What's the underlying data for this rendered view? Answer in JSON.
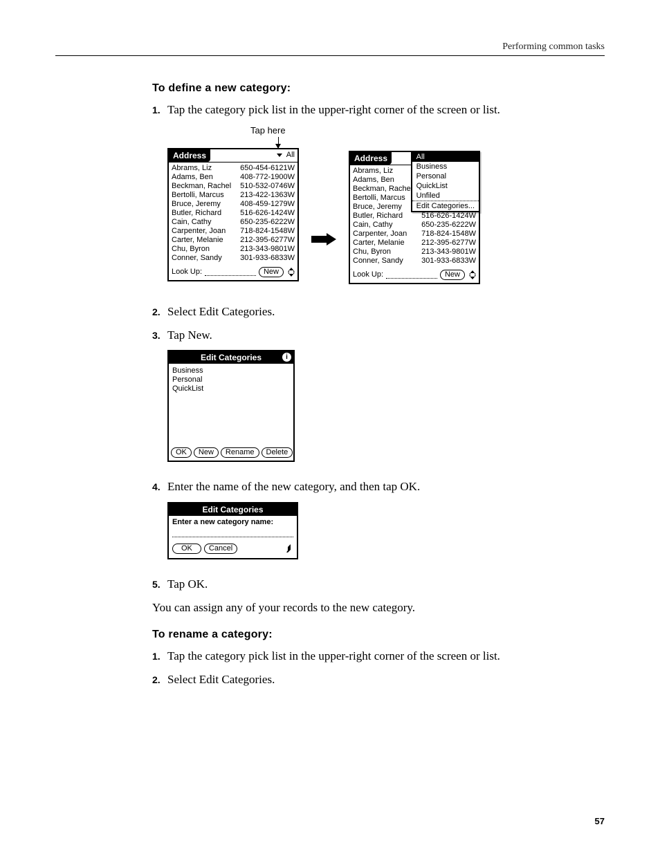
{
  "header": {
    "right_text": "Performing common tasks"
  },
  "section1": {
    "heading": "To define a new category:",
    "steps": {
      "s1": "Tap the category pick list in the upper-right corner of the screen or list.",
      "s2": "Select Edit Categories.",
      "s3": "Tap New.",
      "s4": "Enter the name of the new category, and then tap OK.",
      "s5": "Tap OK."
    },
    "followup": "You can assign any of your records to the new category."
  },
  "section2": {
    "heading": "To rename a category:",
    "steps": {
      "s1": "Tap the category pick list in the upper-right corner of the screen or list.",
      "s2": "Select Edit Categories."
    }
  },
  "figure": {
    "tap_here": "Tap here",
    "app_title": "Address",
    "picklist_all": "All",
    "lookup_label": "Look Up:",
    "new_btn": "New",
    "contacts": [
      {
        "name": "Abrams, Liz",
        "phone": "650-454-6121W"
      },
      {
        "name": "Adams, Ben",
        "phone": "408-772-1900W"
      },
      {
        "name": "Beckman, Rachel",
        "phone": "510-532-0746W"
      },
      {
        "name": "Bertolli, Marcus",
        "phone": "213-422-1363W"
      },
      {
        "name": "Bruce, Jeremy",
        "phone": "408-459-1279W"
      },
      {
        "name": "Butler, Richard",
        "phone": "516-626-1424W"
      },
      {
        "name": "Cain, Cathy",
        "phone": "650-235-6222W"
      },
      {
        "name": "Carpenter, Joan",
        "phone": "718-824-1548W"
      },
      {
        "name": "Carter, Melanie",
        "phone": "212-395-6277W"
      },
      {
        "name": "Chu, Byron",
        "phone": "213-343-9801W"
      },
      {
        "name": "Conner, Sandy",
        "phone": "301-933-6833W"
      }
    ],
    "dropdown": {
      "selected": "All",
      "items": [
        "Business",
        "Personal",
        "QuickList",
        "Unfiled"
      ],
      "edit_item": "Edit Categories..."
    }
  },
  "edit_categories_dialog": {
    "title": "Edit Categories",
    "items": [
      "Business",
      "Personal",
      "QuickList"
    ],
    "buttons": {
      "ok": "OK",
      "new": "New",
      "rename": "Rename",
      "delete": "Delete"
    }
  },
  "name_dialog": {
    "title": "Edit Categories",
    "prompt": "Enter a new category name:",
    "buttons": {
      "ok": "OK",
      "cancel": "Cancel"
    }
  },
  "page_number": "57"
}
